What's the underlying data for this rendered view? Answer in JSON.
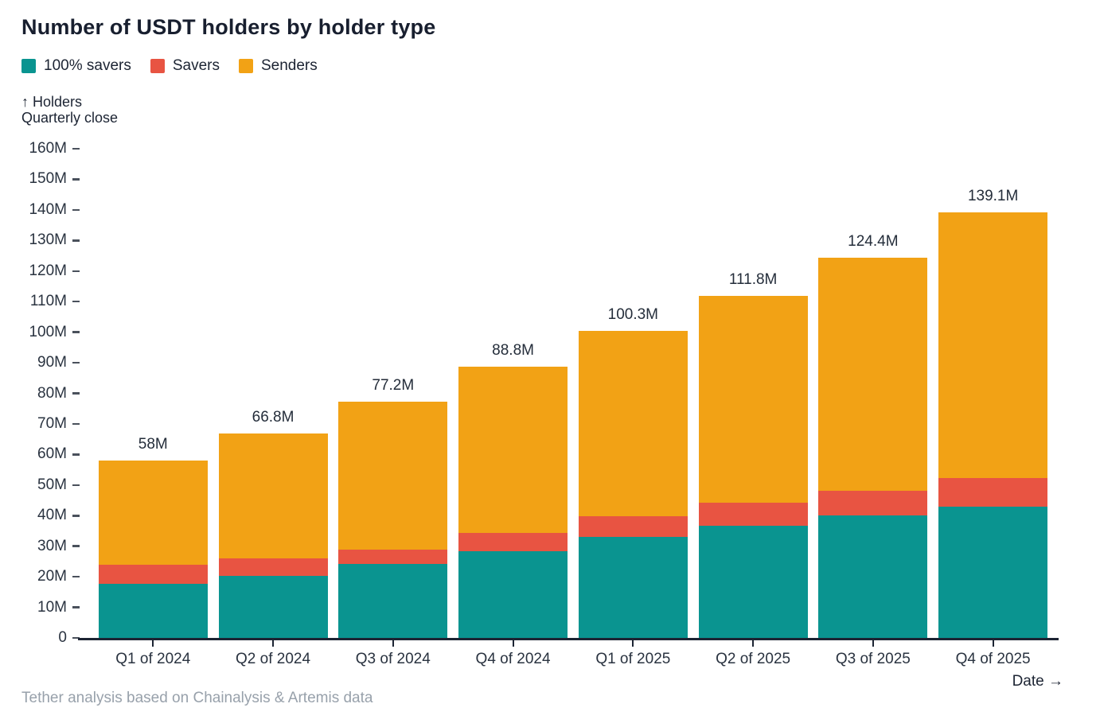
{
  "title": "Number of USDT holders by holder type",
  "y_axis_note_line1": "↑ Holders",
  "y_axis_note_line2": "Quarterly close",
  "x_axis_label": "Date →",
  "footer": "Tether analysis based on Chainalysis & Artemis data",
  "colors": {
    "savers100": "#0a9490",
    "savers": "#e85442",
    "senders": "#f2a215",
    "axis": "#1c2433",
    "text_dark": "#1c2433",
    "text_muted": "#98a1ab"
  },
  "legend": [
    {
      "label": "100% savers",
      "color": "#0a9490"
    },
    {
      "label": "Savers",
      "color": "#e85442"
    },
    {
      "label": "Senders",
      "color": "#f2a215"
    }
  ],
  "chart_data": {
    "type": "bar",
    "stacked": true,
    "title": "Number of USDT holders by holder type",
    "xlabel": "Date",
    "ylabel": "Holders Quarterly close",
    "ylim": [
      0,
      160
    ],
    "y_unit": "M",
    "grid": false,
    "legend_position": "top-left",
    "categories": [
      "Q1 of 2024",
      "Q2 of 2024",
      "Q3 of 2024",
      "Q4 of 2024",
      "Q1 of 2025",
      "Q2 of 2025",
      "Q3 of 2025",
      "Q4 of 2025"
    ],
    "series": [
      {
        "name": "100% savers",
        "color": "#0a9490",
        "values": [
          17.8,
          20.3,
          24.1,
          28.4,
          33.0,
          36.6,
          40.0,
          43.0
        ]
      },
      {
        "name": "Savers",
        "color": "#e85442",
        "values": [
          6.2,
          5.7,
          4.9,
          6.0,
          6.8,
          7.6,
          8.1,
          9.3
        ]
      },
      {
        "name": "Senders",
        "color": "#f2a215",
        "values": [
          34.0,
          40.8,
          48.2,
          54.4,
          60.5,
          67.6,
          76.3,
          86.8
        ]
      }
    ],
    "totals": [
      58,
      66.8,
      77.2,
      88.8,
      100.3,
      111.8,
      124.4,
      139.1
    ],
    "total_labels": [
      "58M",
      "66.8M",
      "77.2M",
      "88.8M",
      "100.3M",
      "111.8M",
      "124.4M",
      "139.1M"
    ],
    "y_ticks": [
      "0",
      "10M",
      "20M",
      "30M",
      "40M",
      "50M",
      "60M",
      "70M",
      "80M",
      "90M",
      "100M",
      "110M",
      "120M",
      "130M",
      "140M",
      "150M",
      "160M"
    ],
    "y_tick_step": 10
  }
}
